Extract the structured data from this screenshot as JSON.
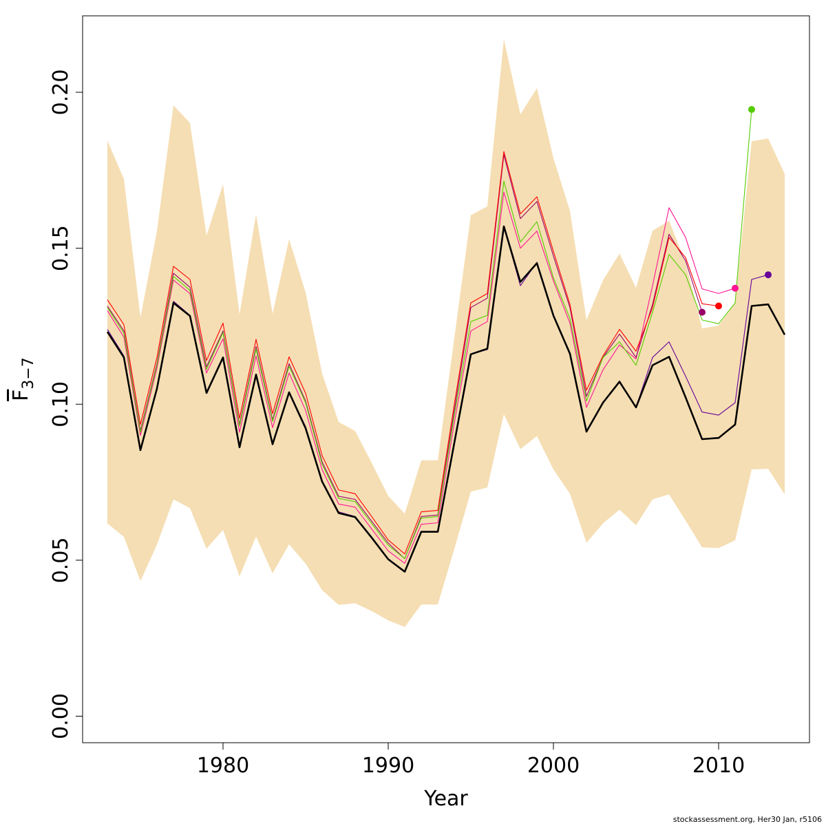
{
  "chart_data": {
    "type": "line",
    "xlabel": "Year",
    "ylabel_main": "F",
    "ylabel_sub": "3−7",
    "xlim": [
      1971.5,
      2015.5
    ],
    "ylim": [
      -0.0085,
      0.2245
    ],
    "x_ticks": [
      1980,
      1990,
      2000,
      2010
    ],
    "y_ticks": [
      0.0,
      0.05,
      0.1,
      0.15,
      0.2
    ],
    "y_tick_labels": [
      "0.00",
      "0.05",
      "0.10",
      "0.15",
      "0.20"
    ],
    "grid": false,
    "band_color": "#f5deb3",
    "confidence_band": {
      "x": [
        1973,
        1974,
        1975,
        1976,
        1977,
        1978,
        1979,
        1980,
        1981,
        1982,
        1983,
        1984,
        1985,
        1986,
        1987,
        1988,
        1989,
        1990,
        1991,
        1992,
        1993,
        1994,
        1995,
        1996,
        1997,
        1998,
        1999,
        2000,
        2001,
        2002,
        2003,
        2004,
        2005,
        2006,
        2007,
        2008,
        2009,
        2010,
        2011,
        2012,
        2013,
        2014
      ],
      "upper": [
        0.1845,
        0.1722,
        0.1278,
        0.1555,
        0.1958,
        0.1902,
        0.1541,
        0.1705,
        0.1288,
        0.1609,
        0.129,
        0.1529,
        0.1358,
        0.1098,
        0.0943,
        0.0914,
        0.0812,
        0.0706,
        0.0649,
        0.082,
        0.082,
        0.1212,
        0.1606,
        0.1634,
        0.217,
        0.1929,
        0.2013,
        0.1789,
        0.162,
        0.127,
        0.1397,
        0.1483,
        0.1373,
        0.1556,
        0.1588,
        0.1455,
        0.1243,
        0.1252,
        0.1324,
        0.1843,
        0.1852,
        0.1738
      ],
      "lower": [
        0.0618,
        0.0575,
        0.0433,
        0.055,
        0.0695,
        0.0667,
        0.0537,
        0.0597,
        0.0448,
        0.0576,
        0.0458,
        0.0551,
        0.0489,
        0.0404,
        0.0357,
        0.0362,
        0.0337,
        0.0307,
        0.0286,
        0.0358,
        0.0358,
        0.0536,
        0.072,
        0.0733,
        0.0968,
        0.0856,
        0.0898,
        0.0791,
        0.0713,
        0.0556,
        0.0618,
        0.0662,
        0.0612,
        0.0695,
        0.0711,
        0.0627,
        0.0541,
        0.0539,
        0.0564,
        0.0791,
        0.0793,
        0.0711
      ]
    },
    "series": [
      {
        "color": "#ff1493",
        "width": 1.1,
        "x": [
          1973,
          1974,
          1975,
          1976,
          1977,
          1978,
          1979,
          1980,
          1981,
          1982,
          1983,
          1984,
          1985,
          1986,
          1987,
          1988,
          1989,
          1990,
          1991,
          1992,
          1993,
          1994,
          1995,
          1996,
          1997,
          1998,
          1999,
          2000,
          2001,
          2002,
          2003,
          2004,
          2005,
          2006,
          2007,
          2008,
          2009,
          2010,
          2011
        ],
        "y": [
          0.13,
          0.1215,
          0.09,
          0.1115,
          0.1398,
          0.1355,
          0.11,
          0.121,
          0.091,
          0.1155,
          0.0925,
          0.11,
          0.098,
          0.079,
          0.068,
          0.067,
          0.06,
          0.053,
          0.049,
          0.0615,
          0.062,
          0.094,
          0.1235,
          0.1265,
          0.168,
          0.15,
          0.1555,
          0.1395,
          0.126,
          0.099,
          0.111,
          0.119,
          0.1145,
          0.138,
          0.163,
          0.1535,
          0.137,
          0.1355,
          0.1372
        ]
      },
      {
        "color": "#990066",
        "width": 1.1,
        "x": [
          1973,
          1974,
          1975,
          1976,
          1977,
          1978,
          1979,
          1980,
          1981,
          1982,
          1983,
          1984,
          1985,
          1986,
          1987,
          1988,
          1989,
          1990,
          1991,
          1992,
          1993,
          1994,
          1995,
          1996,
          1997,
          1998,
          1999,
          2000,
          2001,
          2002,
          2003,
          2004,
          2005,
          2006,
          2007,
          2008,
          2009
        ],
        "y": [
          0.1315,
          0.1235,
          0.0915,
          0.113,
          0.142,
          0.1375,
          0.112,
          0.1235,
          0.0935,
          0.1185,
          0.095,
          0.113,
          0.101,
          0.0815,
          0.0705,
          0.0695,
          0.0625,
          0.0555,
          0.0505,
          0.064,
          0.0645,
          0.098,
          0.131,
          0.134,
          0.18,
          0.1595,
          0.165,
          0.1475,
          0.131,
          0.1025,
          0.115,
          0.1225,
          0.115,
          0.132,
          0.1545,
          0.146,
          0.1295
        ]
      },
      {
        "color": "#ff0000",
        "width": 1.1,
        "x": [
          1973,
          1974,
          1975,
          1976,
          1977,
          1978,
          1979,
          1980,
          1981,
          1982,
          1983,
          1984,
          1985,
          1986,
          1987,
          1988,
          1989,
          1990,
          1991,
          1992,
          1993,
          1994,
          1995,
          1996,
          1997,
          1998,
          1999,
          2000,
          2001,
          2002,
          2003,
          2004,
          2005,
          2006,
          2007,
          2008,
          2009,
          2010
        ],
        "y": [
          0.1335,
          0.1255,
          0.0935,
          0.115,
          0.1442,
          0.14,
          0.114,
          0.126,
          0.0955,
          0.1208,
          0.097,
          0.1152,
          0.1035,
          0.0835,
          0.0725,
          0.0713,
          0.064,
          0.0565,
          0.052,
          0.0655,
          0.066,
          0.1,
          0.1325,
          0.1355,
          0.181,
          0.161,
          0.1665,
          0.149,
          0.132,
          0.1045,
          0.1155,
          0.124,
          0.117,
          0.131,
          0.1535,
          0.147,
          0.1322,
          0.1315
        ]
      },
      {
        "color": "#55cc00",
        "width": 1.1,
        "x": [
          1973,
          1974,
          1975,
          1976,
          1977,
          1978,
          1979,
          1980,
          1981,
          1982,
          1983,
          1984,
          1985,
          1986,
          1987,
          1988,
          1989,
          1990,
          1991,
          1992,
          1993,
          1994,
          1995,
          1996,
          1997,
          1998,
          1999,
          2000,
          2001,
          2002,
          2003,
          2004,
          2005,
          2006,
          2007,
          2008,
          2009,
          2010,
          2011,
          2012
        ],
        "y": [
          0.131,
          0.1228,
          0.091,
          0.1125,
          0.141,
          0.1365,
          0.1112,
          0.123,
          0.093,
          0.1178,
          0.0945,
          0.1122,
          0.1005,
          0.0808,
          0.0698,
          0.0688,
          0.0618,
          0.0548,
          0.0505,
          0.0635,
          0.064,
          0.0965,
          0.1265,
          0.1285,
          0.1715,
          0.152,
          0.1585,
          0.1405,
          0.1275,
          0.101,
          0.115,
          0.12,
          0.1125,
          0.1295,
          0.148,
          0.1415,
          0.127,
          0.1258,
          0.1325,
          0.1945
        ]
      },
      {
        "color": "#660099",
        "width": 1.1,
        "x": [
          1973,
          1974,
          1975,
          1976,
          1977,
          1978,
          1979,
          1980,
          1981,
          1982,
          1983,
          1984,
          1985,
          1986,
          1987,
          1988,
          1989,
          1990,
          1991,
          1992,
          1993,
          1994,
          1995,
          1996,
          1997,
          1998,
          1999,
          2000,
          2001,
          2002,
          2003,
          2004,
          2005,
          2006,
          2007,
          2008,
          2009,
          2010,
          2011,
          2012,
          2013
        ],
        "y": [
          0.124,
          0.1155,
          0.0855,
          0.105,
          0.133,
          0.1285,
          0.104,
          0.115,
          0.0865,
          0.1095,
          0.0875,
          0.104,
          0.0928,
          0.0755,
          0.0655,
          0.064,
          0.0575,
          0.0505,
          0.0465,
          0.0592,
          0.0592,
          0.088,
          0.116,
          0.1175,
          0.157,
          0.138,
          0.1455,
          0.1285,
          0.116,
          0.0915,
          0.1005,
          0.1075,
          0.099,
          0.115,
          0.12,
          0.109,
          0.0975,
          0.0965,
          0.1005,
          0.14,
          0.1415
        ]
      },
      {
        "color": "#000000",
        "width": 2.6,
        "x": [
          1973,
          1974,
          1975,
          1976,
          1977,
          1978,
          1979,
          1980,
          1981,
          1982,
          1983,
          1984,
          1985,
          1986,
          1987,
          1988,
          1989,
          1990,
          1991,
          1992,
          1993,
          1994,
          1995,
          1996,
          1997,
          1998,
          1999,
          2000,
          2001,
          2002,
          2003,
          2004,
          2005,
          2006,
          2007,
          2008,
          2009,
          2010,
          2011,
          2012,
          2013,
          2014
        ],
        "y": [
          0.1232,
          0.115,
          0.0853,
          0.105,
          0.1325,
          0.1283,
          0.1036,
          0.115,
          0.0862,
          0.1095,
          0.0872,
          0.1038,
          0.0923,
          0.0752,
          0.0651,
          0.0638,
          0.0572,
          0.0503,
          0.0463,
          0.0591,
          0.0591,
          0.0876,
          0.116,
          0.1178,
          0.157,
          0.1392,
          0.1452,
          0.1284,
          0.1162,
          0.0912,
          0.1005,
          0.1072,
          0.099,
          0.1125,
          0.1152,
          0.1022,
          0.0888,
          0.0892,
          0.0935,
          0.1315,
          0.132,
          0.1223
        ]
      }
    ],
    "endpoints": [
      {
        "x": 2009,
        "y": 0.1295,
        "color": "#990066"
      },
      {
        "x": 2010,
        "y": 0.1315,
        "color": "#ff0000"
      },
      {
        "x": 2011,
        "y": 0.1372,
        "color": "#ff1493"
      },
      {
        "x": 2012,
        "y": 0.1945,
        "color": "#55cc00"
      },
      {
        "x": 2013,
        "y": 0.1415,
        "color": "#660099"
      }
    ]
  },
  "footer": "stockassessment.org, Her30 Jan, r5106"
}
